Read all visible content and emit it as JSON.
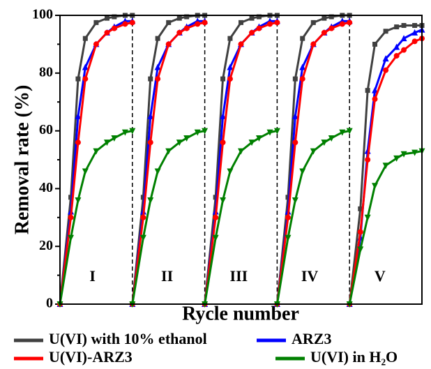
{
  "chart_data": {
    "type": "line",
    "xlabel": "Rycle number",
    "ylabel": "Removal rate (%)",
    "xlim": [
      0,
      50
    ],
    "ylim": [
      0,
      100
    ],
    "yticks": [
      0,
      20,
      40,
      60,
      80,
      100
    ],
    "dividers": [
      10,
      20,
      30,
      40
    ],
    "x": [
      0,
      1.5,
      2.5,
      3.5,
      5,
      6.5,
      7.5,
      9,
      10,
      10,
      10,
      11.5,
      12.5,
      13.5,
      15,
      16.5,
      17.5,
      19,
      20,
      20,
      20,
      21.5,
      22.5,
      23.5,
      25,
      26.5,
      27.5,
      29,
      30,
      30,
      30,
      31.5,
      32.5,
      33.5,
      35,
      36.5,
      37.5,
      39,
      40,
      40,
      40,
      41.5,
      42.5,
      43.5,
      45,
      46.5,
      47.5,
      49,
      50
    ],
    "series": [
      {
        "name": "U(VI) with 10% ethanol",
        "color": "#404040",
        "marker": "square",
        "values": [
          0,
          37,
          78,
          92,
          97.5,
          99,
          99.5,
          100,
          100,
          null,
          0,
          37,
          78,
          92,
          97.5,
          99,
          99.5,
          100,
          100,
          null,
          0,
          37,
          78,
          92,
          97.5,
          99,
          99.5,
          100,
          100,
          null,
          0,
          37,
          78,
          92,
          97.5,
          99,
          99.5,
          100,
          100,
          null,
          0,
          33,
          74,
          90,
          94.5,
          96,
          96.5,
          96.5,
          96.5
        ]
      },
      {
        "name": "ARZ3",
        "color": "#0000ff",
        "marker": "triangle",
        "values": [
          0,
          32,
          65,
          82,
          90,
          94,
          96,
          98,
          98,
          null,
          0,
          32,
          65,
          82,
          90,
          94,
          96,
          98,
          98,
          null,
          0,
          32,
          65,
          82,
          90,
          94,
          96,
          98,
          98,
          null,
          0,
          32,
          65,
          82,
          90,
          94,
          96,
          98,
          98,
          null,
          0,
          23,
          53,
          74,
          85,
          89,
          92,
          94,
          95
        ]
      },
      {
        "name": "U(VI)-ARZ3",
        "color": "#ff0000",
        "marker": "circle",
        "values": [
          0,
          30,
          56,
          78,
          90,
          94,
          95.5,
          97,
          97.5,
          null,
          0,
          30,
          56,
          78,
          90,
          94,
          95.5,
          97,
          97.5,
          null,
          0,
          30,
          56,
          78,
          90,
          94,
          95.5,
          97,
          97.5,
          null,
          0,
          30,
          56,
          78,
          90,
          94,
          95.5,
          97,
          97.5,
          null,
          0,
          25,
          50,
          71,
          81,
          86,
          88,
          91,
          92
        ]
      },
      {
        "name": "U(VI) in H₂O",
        "color": "#008000",
        "marker": "down-triangle",
        "values": [
          0,
          23,
          36,
          46,
          53,
          56,
          57.5,
          59.5,
          60,
          null,
          0,
          23,
          36,
          46,
          53,
          56,
          57.5,
          59.5,
          60,
          null,
          0,
          23,
          36,
          46,
          53,
          56,
          57.5,
          59.5,
          60,
          null,
          0,
          23,
          36,
          46,
          53,
          56,
          57.5,
          59.5,
          60,
          null,
          0,
          19,
          30,
          41,
          48,
          50.5,
          52,
          52.5,
          53
        ]
      }
    ],
    "annotations": [
      {
        "text": "I",
        "x": 4.5,
        "y": 9.2
      },
      {
        "text": "II",
        "x": 14.8,
        "y": 9.2
      },
      {
        "text": "III",
        "x": 24.7,
        "y": 9.2
      },
      {
        "text": "IV",
        "x": 34.5,
        "y": 9.2
      },
      {
        "text": "V",
        "x": 44.2,
        "y": 9.2
      }
    ]
  }
}
